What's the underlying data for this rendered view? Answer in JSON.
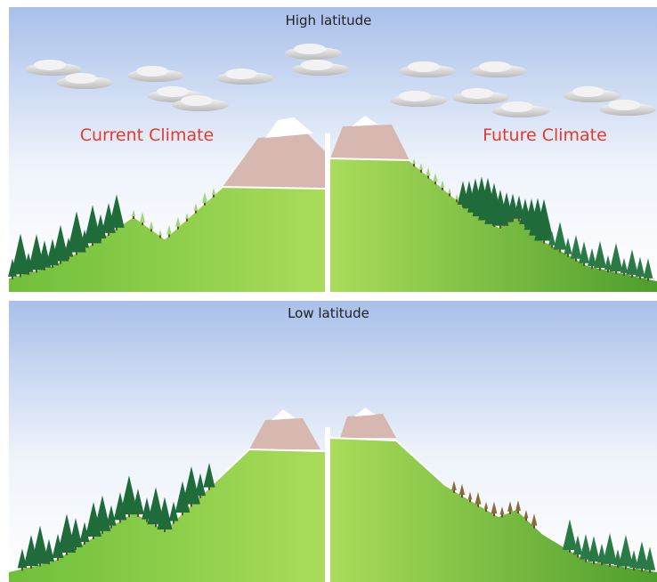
{
  "panels": [
    {
      "title": "High latitude",
      "left_label": "Current Climate",
      "right_label": "Future Climate"
    },
    {
      "title": "Low latitude"
    }
  ]
}
